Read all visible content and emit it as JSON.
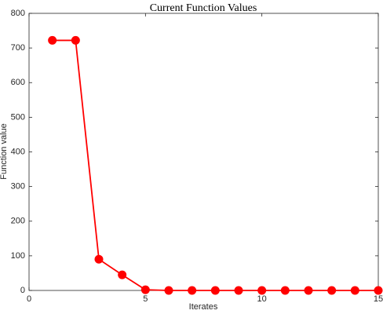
{
  "chart_data": {
    "type": "line",
    "title": "Current Function Values",
    "x_label": "Iterates",
    "y_label": "Function value",
    "x": [
      1,
      2,
      3,
      4,
      5,
      6,
      7,
      8,
      9,
      10,
      11,
      12,
      13,
      14,
      15
    ],
    "series": [
      {
        "name": "Function value",
        "color": "#ff0000",
        "values": [
          722,
          722,
          90,
          45,
          2,
          0,
          0,
          0,
          0,
          0,
          0,
          0,
          0,
          0,
          0
        ]
      }
    ],
    "xlim": [
      0,
      15
    ],
    "xticks": [
      0,
      5,
      10,
      15
    ],
    "ylim": [
      0,
      800
    ],
    "yticks": [
      0,
      100,
      200,
      300,
      400,
      500,
      600,
      700,
      800
    ]
  }
}
